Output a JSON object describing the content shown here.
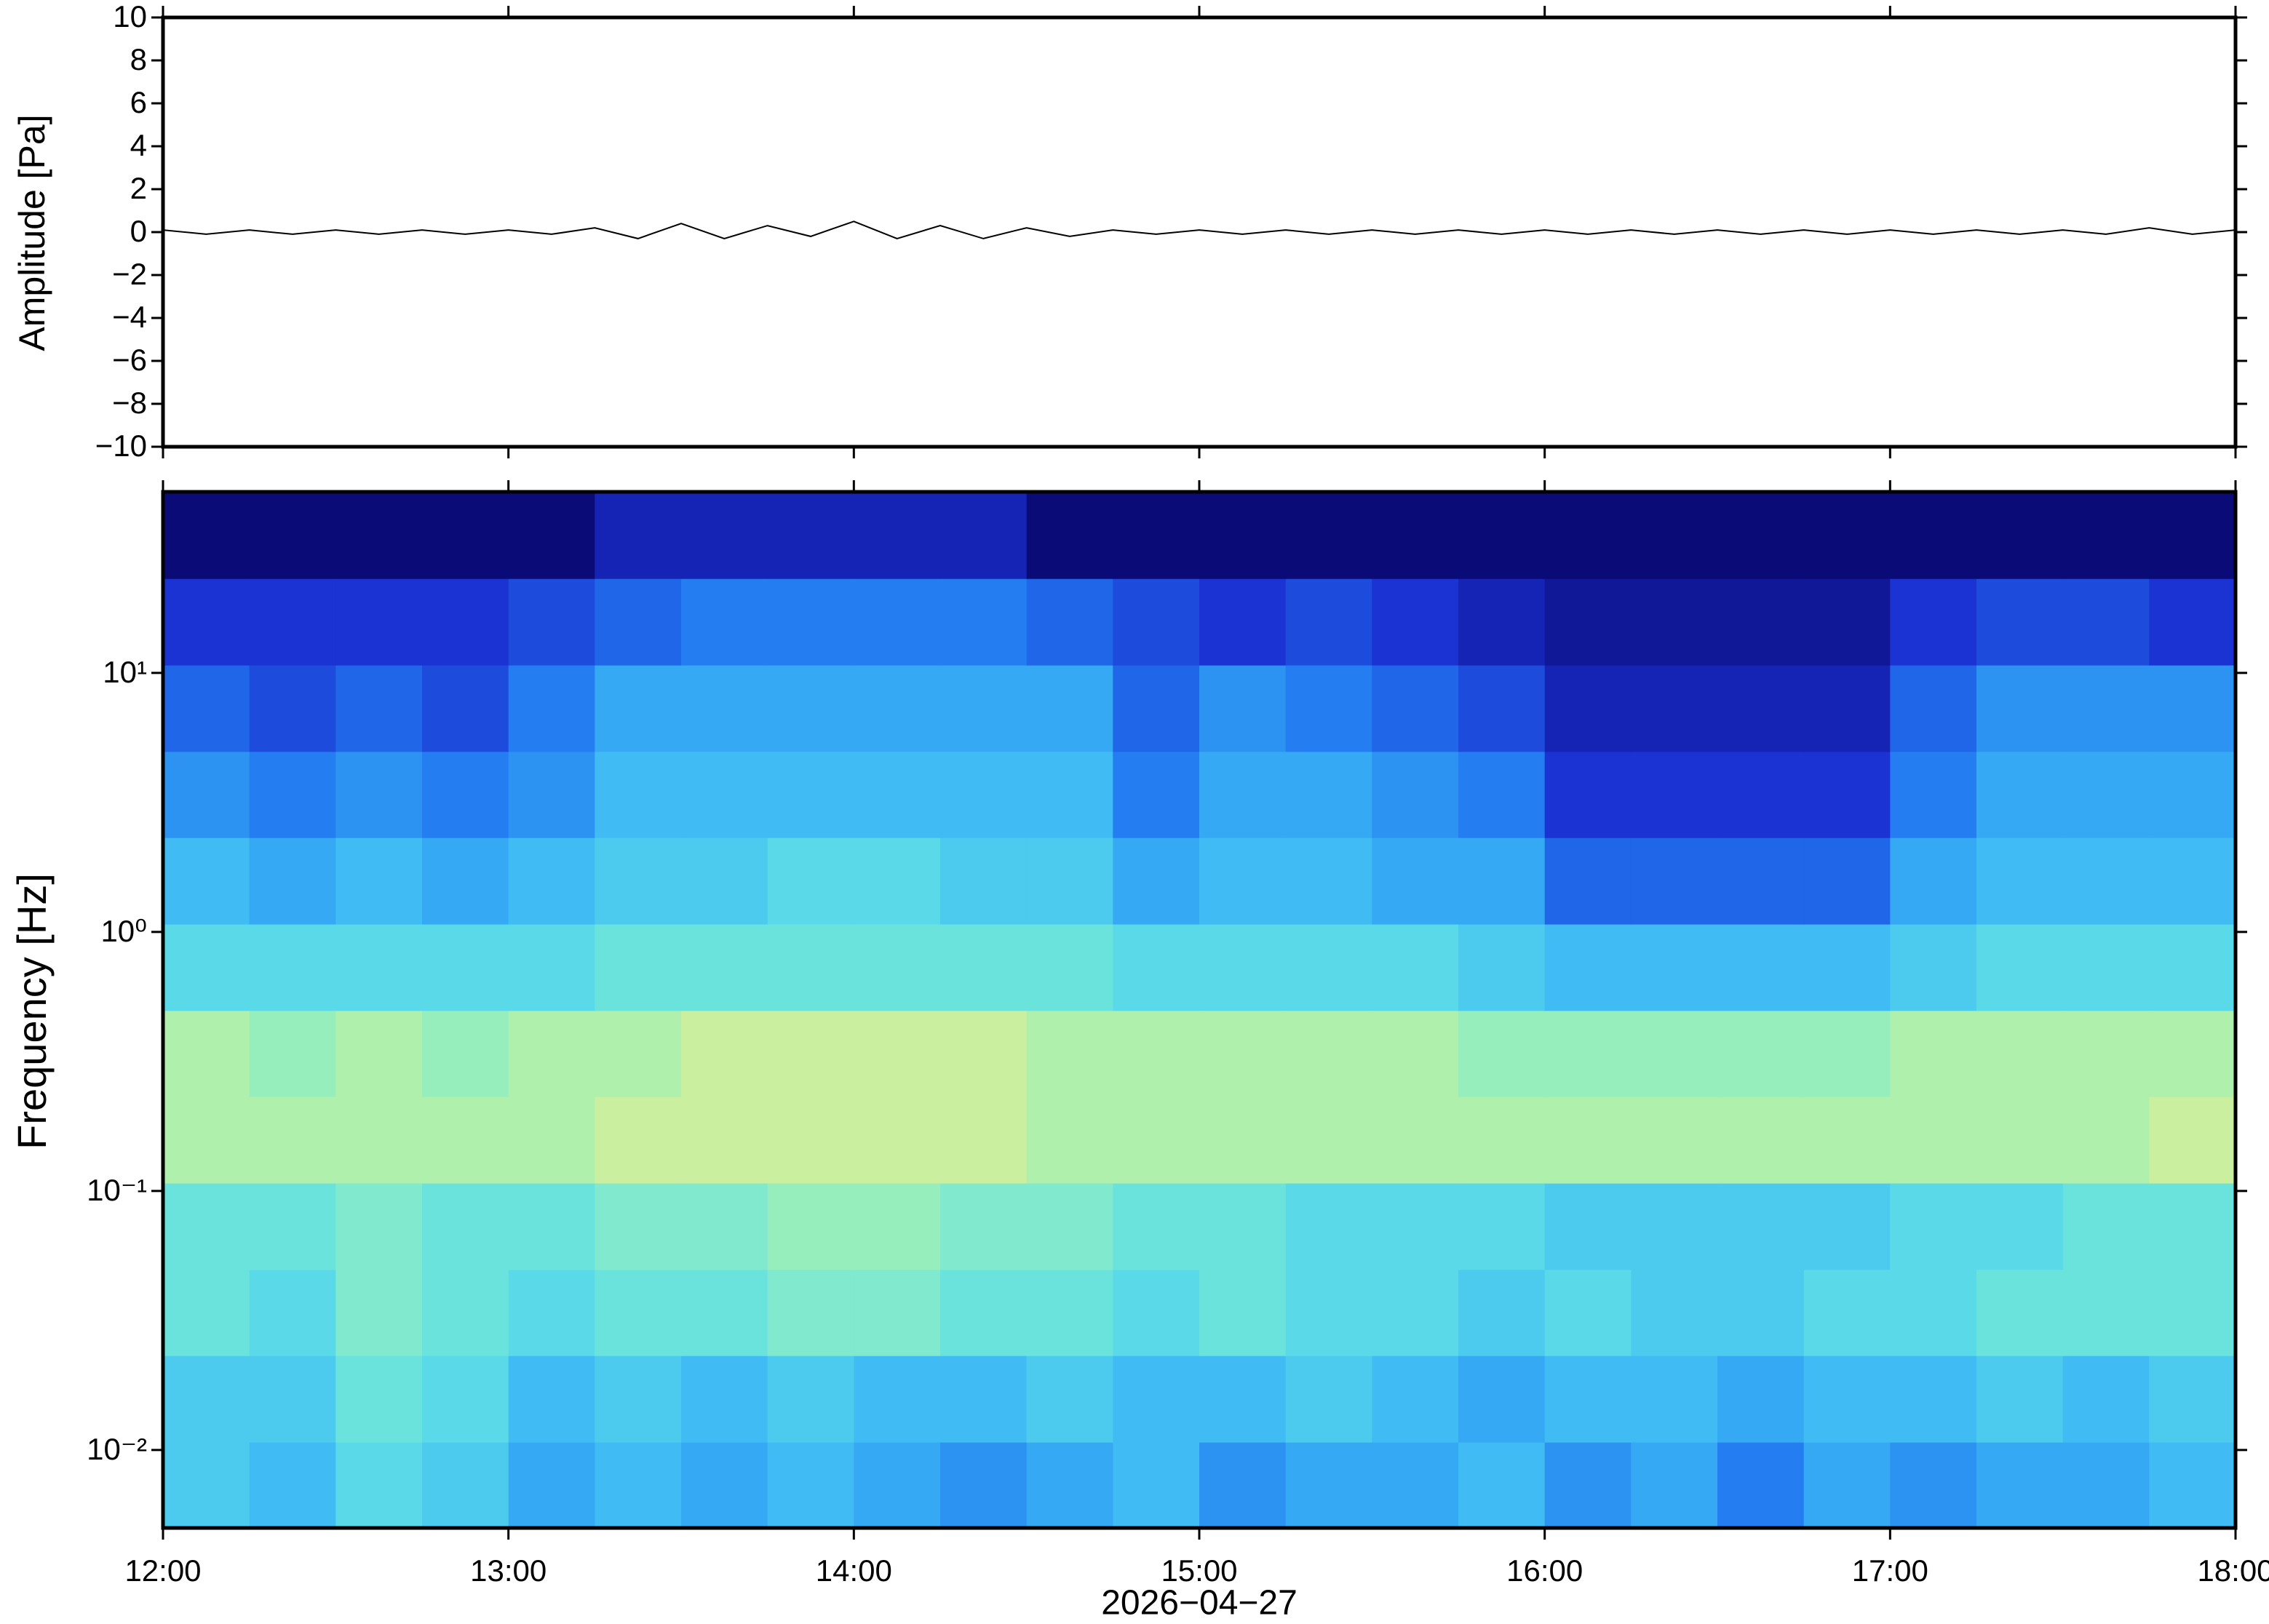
{
  "chart_data": [
    {
      "type": "line",
      "ylabel": "Amplitude [Pa]",
      "xlim": [
        12,
        18
      ],
      "ylim": [
        -10,
        10
      ],
      "yticks": [
        10,
        8,
        6,
        4,
        2,
        0,
        {
          "value": -2,
          "label": "−2"
        },
        {
          "value": -4,
          "label": "−4"
        },
        {
          "value": -6,
          "label": "−6"
        },
        {
          "value": -8,
          "label": "−8"
        },
        {
          "value": -10,
          "label": "−10"
        }
      ],
      "color": "#000000",
      "x": [
        12,
        12.125,
        12.25,
        12.375,
        12.5,
        12.625,
        12.75,
        12.875,
        13,
        13.125,
        13.25,
        13.375,
        13.5,
        13.625,
        13.75,
        13.875,
        14,
        14.125,
        14.25,
        14.375,
        14.5,
        14.625,
        14.75,
        14.875,
        15,
        15.125,
        15.25,
        15.375,
        15.5,
        15.625,
        15.75,
        15.875,
        16,
        16.125,
        16.25,
        16.375,
        16.5,
        16.625,
        16.75,
        16.875,
        17,
        17.125,
        17.25,
        17.375,
        17.5,
        17.625,
        17.75,
        17.875,
        18
      ],
      "values": [
        0.1,
        -0.1,
        0.1,
        -0.1,
        0.1,
        -0.1,
        0.1,
        -0.1,
        0.1,
        -0.1,
        0.2,
        -0.3,
        0.4,
        -0.3,
        0.3,
        -0.2,
        0.5,
        -0.3,
        0.3,
        -0.3,
        0.2,
        -0.2,
        0.1,
        -0.1,
        0.1,
        -0.1,
        0.1,
        -0.1,
        0.1,
        -0.1,
        0.1,
        -0.1,
        0.1,
        -0.1,
        0.1,
        -0.1,
        0.1,
        -0.1,
        0.1,
        -0.1,
        0.1,
        -0.1,
        0.1,
        -0.1,
        0.1,
        -0.1,
        0.2,
        -0.1,
        0.1
      ]
    },
    {
      "type": "heatmap",
      "ylabel": "Frequency [Hz]",
      "xlabel": "2026−04−27",
      "xlim": [
        12,
        18
      ],
      "xticks": [
        {
          "value": 12,
          "label": "12:00"
        },
        {
          "value": 13,
          "label": "13:00"
        },
        {
          "value": 14,
          "label": "14:00"
        },
        {
          "value": 15,
          "label": "15:00"
        },
        {
          "value": 16,
          "label": "16:00"
        },
        {
          "value": 17,
          "label": "17:00"
        },
        {
          "value": 18,
          "label": "18:00"
        }
      ],
      "ylim": [
        0.005,
        50
      ],
      "yscale": "log",
      "yticks": [
        {
          "value": 0.01,
          "label": "10⁻²"
        },
        {
          "value": 0.1,
          "label": "10⁻¹"
        },
        {
          "value": 1,
          "label": "10⁰"
        },
        {
          "value": 10,
          "label": "10¹"
        }
      ],
      "x": [
        12.125,
        12.375,
        12.625,
        12.875,
        13.125,
        13.375,
        13.625,
        13.875,
        14.125,
        14.375,
        14.625,
        14.875,
        15.125,
        15.375,
        15.625,
        15.875,
        16.125,
        16.375,
        16.625,
        16.875,
        17.125,
        17.375,
        17.625,
        17.875
      ],
      "y": [
        0.0073,
        0.0158,
        0.034,
        0.073,
        0.158,
        0.34,
        0.73,
        1.58,
        3.4,
        7.3,
        15.8,
        34
      ],
      "zlim": [
        0,
        10
      ],
      "colormap": [
        "#0b0b78",
        "#1a2fd0",
        "#2178f0",
        "#3bb5f5",
        "#5fe0e6",
        "#9cf0b8",
        "#e8ee8c",
        "#f4b070"
      ],
      "values": [
        [
          5,
          4.5,
          5.5,
          5,
          4,
          4.5,
          4,
          4.5,
          4,
          3.5,
          4,
          4.5,
          3.5,
          4,
          4,
          4.5,
          3.5,
          4,
          3,
          4,
          3.5,
          4,
          4,
          4.5
        ],
        [
          5,
          5,
          6,
          5.5,
          4.5,
          5,
          4.5,
          5,
          4.5,
          4.5,
          5,
          4.5,
          4.5,
          5,
          4.5,
          4,
          4.5,
          4.5,
          4,
          4.5,
          4.5,
          5,
          4.5,
          5
        ],
        [
          6,
          5.5,
          6.5,
          6,
          5.5,
          6,
          6,
          6.5,
          6.5,
          6,
          6,
          5.5,
          6,
          5.5,
          5.5,
          5,
          5.5,
          5,
          5,
          5.5,
          5.5,
          6,
          6,
          6
        ],
        [
          6,
          6,
          6.5,
          6,
          6,
          6.5,
          6.5,
          7,
          7,
          6.5,
          6.5,
          6,
          6,
          5.5,
          5.5,
          5.5,
          5,
          5,
          5,
          5,
          5.5,
          5.5,
          6,
          6
        ],
        [
          7.5,
          7.5,
          7.5,
          7.5,
          7.5,
          8,
          8,
          8,
          8,
          8,
          7.5,
          7.5,
          7.5,
          7.5,
          7.5,
          7.5,
          7.5,
          7.5,
          7.5,
          7.5,
          7.5,
          7.5,
          7.5,
          8
        ],
        [
          7.5,
          7,
          7.5,
          7,
          7.5,
          7.5,
          8,
          8,
          8,
          8,
          7.5,
          7.5,
          7.5,
          7.5,
          7.5,
          7,
          7,
          7,
          7,
          7,
          7.5,
          7.5,
          7.5,
          7.5
        ],
        [
          5.5,
          5.5,
          5.5,
          5.5,
          5.5,
          6,
          6,
          6,
          6,
          6,
          6,
          5.5,
          5.5,
          5.5,
          5.5,
          5,
          4.5,
          4.5,
          4.5,
          4.5,
          5,
          5.5,
          5.5,
          5.5
        ],
        [
          4.5,
          4,
          4.5,
          4,
          4.5,
          5,
          5,
          5.5,
          5.5,
          5,
          5,
          4,
          4.5,
          4.5,
          4,
          4,
          2.5,
          2.5,
          2.5,
          2.5,
          4,
          4.5,
          4.5,
          4.5
        ],
        [
          3.5,
          3,
          3.5,
          3,
          3.5,
          4.5,
          4.5,
          4.5,
          4.5,
          4.5,
          4.5,
          3,
          4,
          4,
          3.5,
          3,
          1.5,
          1.5,
          1.5,
          1.5,
          3,
          4,
          4,
          4
        ],
        [
          2.5,
          2,
          2.5,
          2,
          3,
          4,
          4,
          4,
          4,
          4,
          4,
          2.5,
          3.5,
          3,
          2.5,
          2,
          1,
          1,
          1,
          1,
          2.5,
          3.5,
          3.5,
          3.5
        ],
        [
          1.5,
          1.5,
          1.5,
          1.5,
          2,
          2.5,
          3,
          3,
          3,
          3,
          2.5,
          2,
          1.5,
          2,
          1.5,
          1,
          0.5,
          0.5,
          0.5,
          0.5,
          1.5,
          2,
          2,
          1.5
        ],
        [
          0,
          0,
          0,
          0,
          0,
          1,
          1,
          1,
          1,
          1,
          0,
          0,
          0,
          0,
          0,
          0,
          0,
          0,
          0,
          0,
          0,
          0,
          0,
          0
        ]
      ]
    }
  ]
}
